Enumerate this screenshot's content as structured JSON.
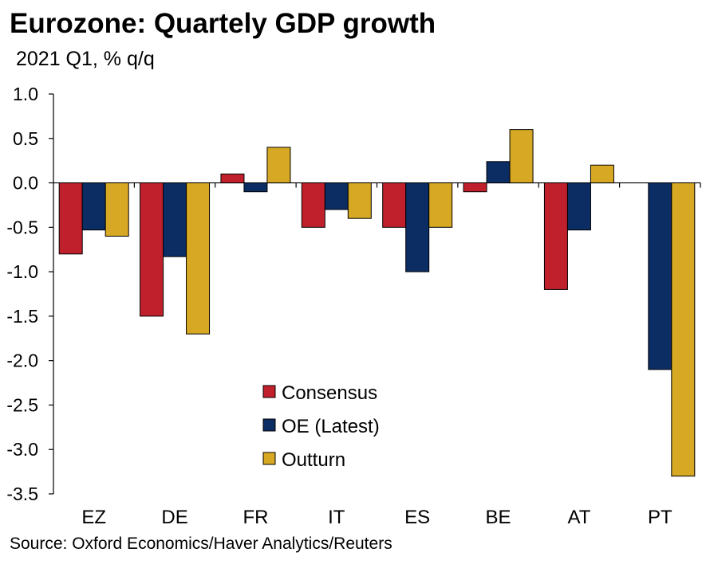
{
  "chart_data": {
    "type": "bar",
    "title": "Eurozone: Quartely GDP growth",
    "subtitle": "2021 Q1, % q/q",
    "categories": [
      "EZ",
      "DE",
      "FR",
      "IT",
      "ES",
      "BE",
      "AT",
      "PT"
    ],
    "series": [
      {
        "name": "Consensus",
        "color": "#c0202c",
        "values": [
          -0.8,
          -1.5,
          0.1,
          -0.5,
          -0.5,
          -0.1,
          -1.2,
          null
        ]
      },
      {
        "name": "OE (Latest)",
        "color": "#0c2d63",
        "values": [
          -0.53,
          -0.83,
          -0.1,
          -0.3,
          -1.0,
          0.24,
          -0.53,
          -2.1
        ]
      },
      {
        "name": "Outturn",
        "color": "#d7a823",
        "values": [
          -0.6,
          -1.7,
          0.4,
          -0.4,
          -0.5,
          0.6,
          0.2,
          -3.3
        ]
      }
    ],
    "ylim": [
      -3.5,
      1.0
    ],
    "yticks": [
      "1.0",
      "0.5",
      "0.0",
      "-0.5",
      "-1.0",
      "-1.5",
      "-2.0",
      "-2.5",
      "-3.0",
      "-3.5"
    ],
    "legend_position": "bottom-center",
    "grid": false,
    "source": "Source: Oxford Economics/Haver Analytics/Reuters"
  }
}
